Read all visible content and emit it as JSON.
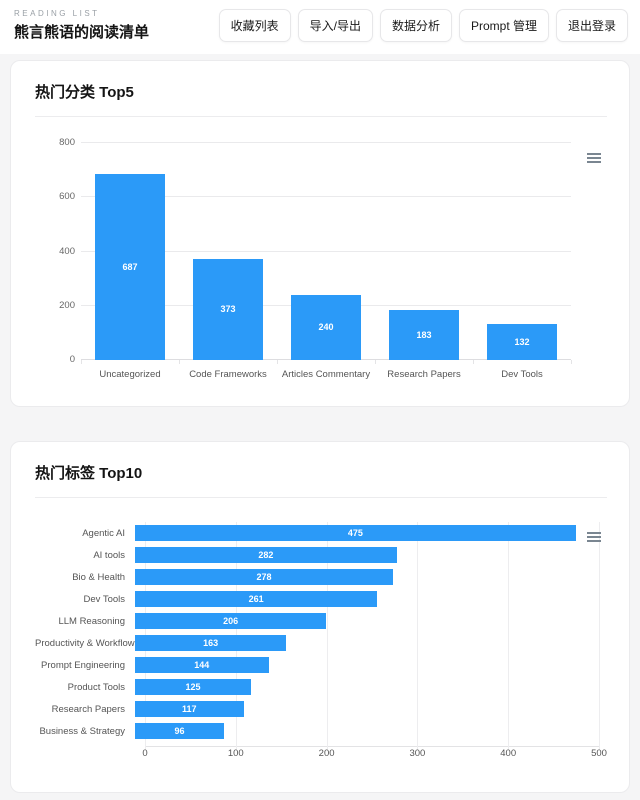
{
  "header": {
    "eyebrow": "READING LIST",
    "title": "熊言熊语的阅读清单",
    "nav": [
      {
        "label": "收藏列表"
      },
      {
        "label": "导入/导出"
      },
      {
        "label": "数据分析"
      },
      {
        "label": "Prompt 管理"
      },
      {
        "label": "退出登录"
      }
    ]
  },
  "icons": {
    "chart_menu": "hamburger-icon"
  },
  "colors": {
    "bar": "#2b9af8",
    "bar_value_label": "#ffffff",
    "grid": "#eaeaec",
    "axis_label": "#555555",
    "card_background": "#ffffff",
    "page_background": "#f5f5f6"
  },
  "chart_data": [
    {
      "type": "bar",
      "orientation": "vertical",
      "title": "热门分类 Top5",
      "categories": [
        "Uncategorized",
        "Code Frameworks",
        "Articles Commentary",
        "Research Papers",
        "Dev Tools"
      ],
      "values": [
        687,
        373,
        240,
        183,
        132
      ],
      "xlabel": "",
      "ylabel": "",
      "ylim": [
        0,
        800
      ],
      "yticks": [
        0,
        200,
        400,
        600,
        800
      ],
      "grid": true,
      "legend": false,
      "value_labels": "inside-center"
    },
    {
      "type": "bar",
      "orientation": "horizontal",
      "title": "热门标签 Top10",
      "categories": [
        "Agentic AI",
        "AI tools",
        "Bio & Health",
        "Dev Tools",
        "LLM Reasoning",
        "Productivity & Workflow",
        "Prompt Engineering",
        "Product Tools",
        "Research Papers",
        "Business & Strategy"
      ],
      "values": [
        475,
        282,
        278,
        261,
        206,
        163,
        144,
        125,
        117,
        96
      ],
      "xlabel": "",
      "ylabel": "",
      "xlim": [
        0,
        500
      ],
      "xticks": [
        0,
        100,
        200,
        300,
        400,
        500
      ],
      "grid": true,
      "legend": false,
      "value_labels": "inside-center"
    }
  ]
}
